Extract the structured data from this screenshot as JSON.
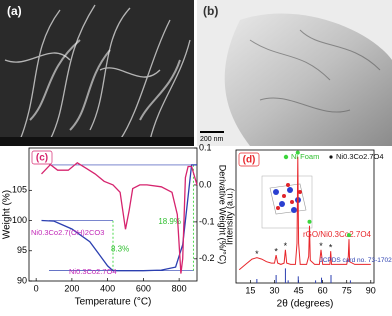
{
  "panels": {
    "a": {
      "label": "(a)"
    },
    "b": {
      "label": "(b)",
      "scale_bar": "200 nm"
    }
  },
  "chart_data": [
    {
      "type": "line",
      "panel_label": "(c)",
      "xlabel": "Temperature (°C)",
      "ylabel": "Weight (%)",
      "y2label": "Derivative Weight (%/°C)",
      "xlim": [
        -40,
        900
      ],
      "xticks": [
        0,
        200,
        400,
        600,
        800
      ],
      "ylim": [
        90,
        112
      ],
      "yticks": [
        90,
        95,
        100,
        105
      ],
      "y2lim": [
        -0.26,
        0.1
      ],
      "y2ticks": [
        {
          "value": -0.2,
          "label": "-0.2"
        },
        {
          "value": -0.1,
          "label": "-0.1"
        },
        {
          "value": 0,
          "label": "0.0"
        },
        {
          "value": 0.1,
          "label": "0.1"
        }
      ],
      "series": [
        {
          "color": "#2b3fb0",
          "axis": "y",
          "x": [
            30,
            100,
            200,
            300,
            350,
            400,
            430,
            500,
            600,
            700,
            780,
            820,
            850,
            870,
            900
          ],
          "values": [
            100,
            99.9,
            98.6,
            96.5,
            94.5,
            92.5,
            91.7,
            91.7,
            91.7,
            91.8,
            92.3,
            96,
            104,
            109.2,
            109.2
          ]
        },
        {
          "color": "#d6246e",
          "axis": "y2",
          "x": [
            30,
            80,
            120,
            180,
            230,
            280,
            330,
            380,
            430,
            470,
            500,
            520,
            540,
            580,
            620,
            700,
            760,
            790,
            810,
            820,
            835,
            850,
            870,
            900
          ],
          "values": [
            0.03,
            0.055,
            0.04,
            0.04,
            0.06,
            0.045,
            0.03,
            0.01,
            0.0,
            -0.02,
            -0.12,
            -0.07,
            -0.01,
            0,
            0,
            -0.005,
            -0.02,
            -0.08,
            -0.24,
            -0.2,
            0.02,
            0.05,
            0.05,
            0.0
          ]
        }
      ],
      "annotations": [
        "Ni0.3Co2.7(OH)2CO3",
        "Ni0.3Co2.7O4"
      ],
      "mass_changes": [
        {
          "label": "8.3%",
          "x": 430,
          "y": [
            91.7,
            100
          ]
        },
        {
          "label": "18.9%",
          "x": 880,
          "y": [
            91.7,
            109.2
          ]
        }
      ]
    },
    {
      "type": "xrd",
      "panel_label": "(d)",
      "xlabel": "2θ (degrees)",
      "ylabel": "Intensity (a.u.)",
      "xlim": [
        6,
        92
      ],
      "xticks": [
        15,
        30,
        45,
        60,
        75,
        90
      ],
      "ylim": [
        0,
        100
      ],
      "series": [
        {
          "name": "rGO/Ni0.3Co2.7O4",
          "style": "line",
          "color": "#e8262b",
          "x": [
            8,
            12,
            16,
            19,
            22,
            25,
            28,
            30,
            31,
            32,
            34,
            36,
            36.8,
            37.6,
            40,
            43,
            44,
            44.5,
            45,
            46,
            50,
            51.3,
            51.8,
            52.3,
            55,
            58,
            59,
            60,
            63,
            64.5,
            65,
            65.5,
            70,
            75,
            76,
            76.4,
            76.8,
            80,
            85,
            90
          ],
          "values": [
            10,
            14,
            18,
            19,
            18,
            16,
            15,
            15,
            21,
            15,
            14,
            15,
            25,
            15,
            14,
            14,
            30,
            95,
            30,
            14,
            14,
            20,
            43,
            17,
            14,
            14,
            25,
            14,
            14,
            14,
            24,
            14,
            14,
            14,
            20,
            33,
            16,
            14,
            14,
            14
          ]
        },
        {
          "name": "JCPDS card no. 73-1702",
          "style": "sticks",
          "color": "#2b3fb0",
          "x": [
            19,
            31,
            36.8,
            38.5,
            44.8,
            55.6,
            59.3,
            65.2,
            77.3
          ],
          "values": [
            3,
            6,
            11,
            2,
            5,
            2,
            4,
            6,
            2
          ]
        },
        {
          "name": "Ni Foam",
          "style": "markers",
          "color": "#3bd63b",
          "x": [
            44.5,
            51.8,
            76.4
          ],
          "values": [
            95,
            43,
            33
          ]
        },
        {
          "name": "Ni0.3Co2.7O4",
          "style": "markers",
          "color": "#111111",
          "x": [
            19,
            31,
            36.8,
            59,
            65
          ],
          "values": [
            19,
            21,
            25,
            25,
            24
          ]
        }
      ]
    }
  ]
}
